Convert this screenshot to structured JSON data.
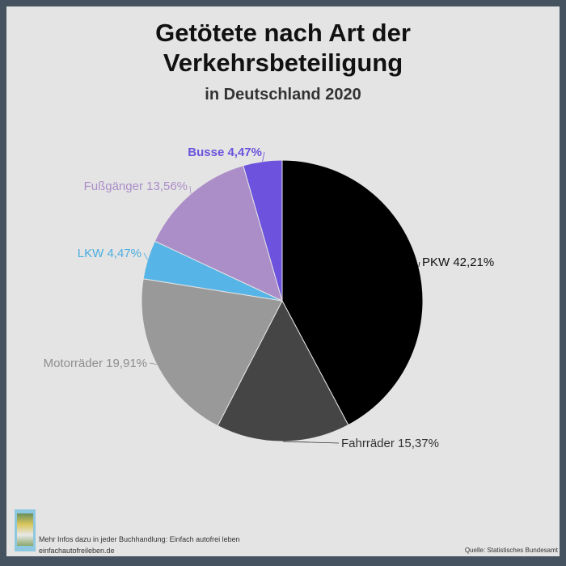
{
  "title_line1": "Getötete nach Art der",
  "title_line2": "Verkehrsbeteiligung",
  "subtitle": "in Deutschland 2020",
  "footer": {
    "info": "Mehr Infos dazu in jeder Buchhandlung: Einfach autofrei leben",
    "url": "einfachautofreileben.de",
    "source": "Quelle: Statistisches Bundesamt"
  },
  "chart_data": {
    "type": "pie",
    "title": "Getötete nach Art der Verkehrsbeteiligung",
    "subtitle": "in Deutschland 2020",
    "slices": [
      {
        "label": "PKW",
        "value": 42.21,
        "display": "PKW 42,21%",
        "color": "#000000",
        "label_color": "#111111"
      },
      {
        "label": "Fahrräder",
        "value": 15.37,
        "display": "Fahrräder 15,37%",
        "color": "#454545",
        "label_color": "#333333"
      },
      {
        "label": "Motorräder",
        "value": 19.91,
        "display": "Motorräder 19,91%",
        "color": "#999999",
        "label_color": "#8e8e8e"
      },
      {
        "label": "LKW",
        "value": 4.47,
        "display": "LKW 4,47%",
        "color": "#56b4e6",
        "label_color": "#4aaee0"
      },
      {
        "label": "Fußgänger",
        "value": 13.56,
        "display": "Fußgänger 13,56%",
        "color": "#ab8dc8",
        "label_color": "#ab8dc8"
      },
      {
        "label": "Busse",
        "value": 4.47,
        "display": "Busse 4,47%",
        "color": "#6c52dc",
        "label_color": "#6c52dc"
      }
    ]
  }
}
